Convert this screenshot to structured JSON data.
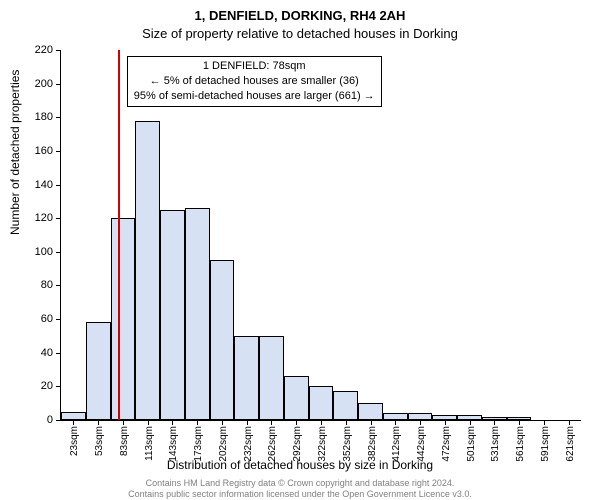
{
  "titles": {
    "line1": "1, DENFIELD, DORKING, RH4 2AH",
    "line2": "Size of property relative to detached houses in Dorking"
  },
  "y_axis": {
    "title": "Number of detached properties",
    "min": 0,
    "max": 220,
    "step": 20
  },
  "x_axis": {
    "title": "Distribution of detached houses by size in Dorking",
    "labels": [
      "23sqm",
      "53sqm",
      "83sqm",
      "113sqm",
      "143sqm",
      "173sqm",
      "202sqm",
      "232sqm",
      "262sqm",
      "292sqm",
      "322sqm",
      "352sqm",
      "382sqm",
      "412sqm",
      "442sqm",
      "472sqm",
      "501sqm",
      "531sqm",
      "561sqm",
      "591sqm",
      "621sqm"
    ]
  },
  "chart": {
    "type": "histogram",
    "bar_fill": "#d6e1f4",
    "bar_stroke": "#000000",
    "background": "#ffffff",
    "bin_start": 8,
    "bin_width": 30,
    "values": [
      5,
      58,
      120,
      178,
      125,
      126,
      95,
      50,
      50,
      26,
      20,
      17,
      10,
      4,
      4,
      3,
      3,
      2,
      2,
      0,
      0
    ]
  },
  "reference_line": {
    "sqm": 78,
    "color": "#d40000"
  },
  "annotation": {
    "line1": "1 DENFIELD: 78sqm",
    "line2": "← 5% of detached houses are smaller (36)",
    "line3": "95% of semi-detached houses are larger (661) →"
  },
  "footer": {
    "line1": "Contains HM Land Registry data © Crown copyright and database right 2024.",
    "line2": "Contains public sector information licensed under the Open Government Licence v3.0."
  }
}
